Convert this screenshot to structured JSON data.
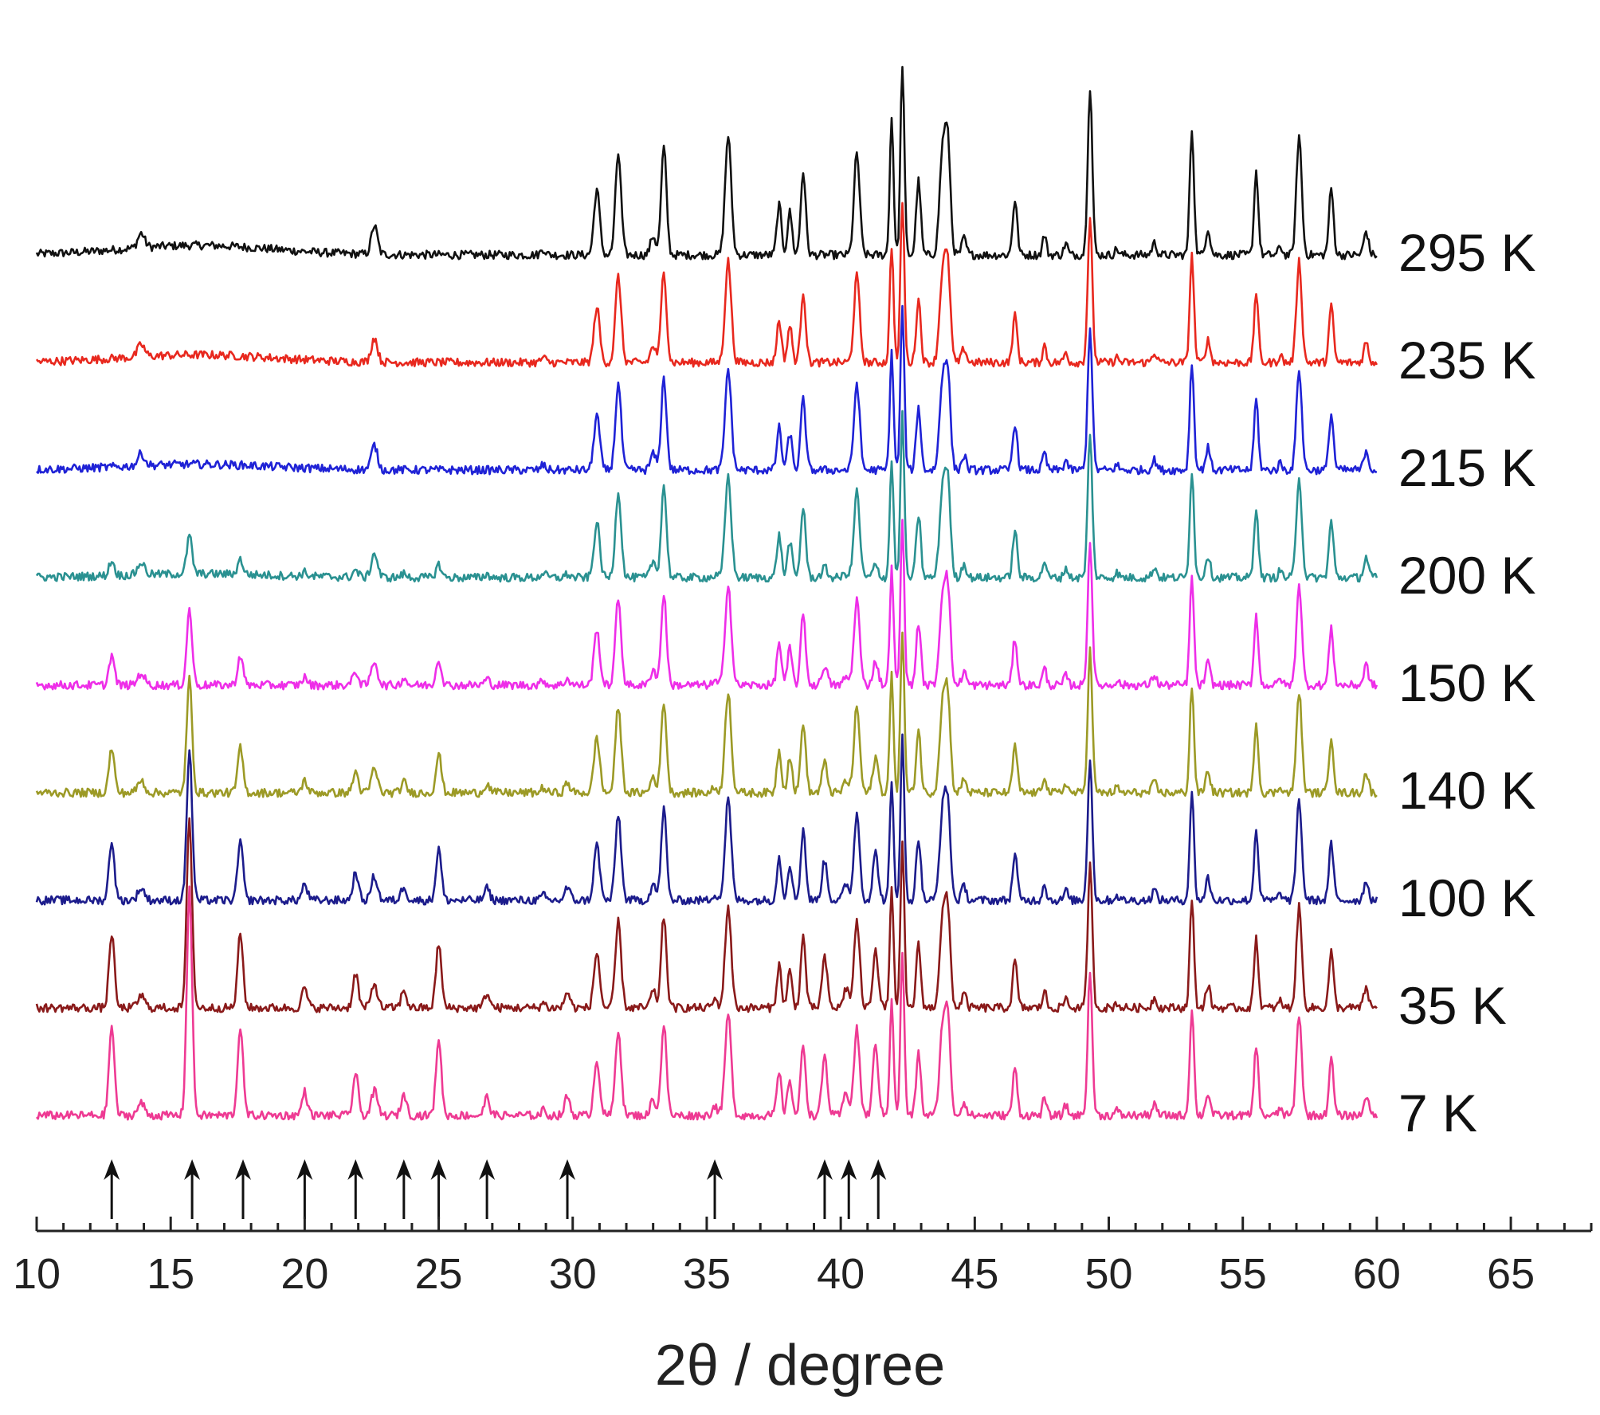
{
  "chart_data": {
    "type": "line",
    "title": "",
    "xlabel": "2θ / degree",
    "ylabel": "",
    "xlim": [
      10,
      68
    ],
    "x_ticks": [
      "10",
      "15",
      "20",
      "25",
      "30",
      "35",
      "40",
      "45",
      "50",
      "55",
      "60",
      "65"
    ],
    "grid": false,
    "legend": "none",
    "stacked_offset": true,
    "series": [
      {
        "name": "295 K",
        "color": "#111111",
        "intensity": 1.0
      },
      {
        "name": "235 K",
        "color": "#e8281e",
        "intensity": 0.85
      },
      {
        "name": "215 K",
        "color": "#1f22d6",
        "intensity": 0.85
      },
      {
        "name": "200 K",
        "color": "#2a9191",
        "intensity": 0.85
      },
      {
        "name": "150 K",
        "color": "#ee2ee8",
        "intensity": 0.85
      },
      {
        "name": "140 K",
        "color": "#9c9a26",
        "intensity": 0.85
      },
      {
        "name": "100 K",
        "color": "#1c1c8c",
        "intensity": 0.85
      },
      {
        "name": "35 K",
        "color": "#8a1a1a",
        "intensity": 0.85
      },
      {
        "name": "7 K",
        "color": "#ee3a93",
        "intensity": 0.85
      }
    ],
    "common_peaks": [
      {
        "x": 13.9,
        "h": 0.12,
        "w": 0.18
      },
      {
        "x": 22.6,
        "h": 0.24,
        "w": 0.16
      },
      {
        "x": 28.9,
        "h": 0.05,
        "w": 0.12
      },
      {
        "x": 30.9,
        "h": 0.55,
        "w": 0.15
      },
      {
        "x": 31.7,
        "h": 0.85,
        "w": 0.15
      },
      {
        "x": 33.0,
        "h": 0.16,
        "w": 0.14
      },
      {
        "x": 33.4,
        "h": 0.9,
        "w": 0.14
      },
      {
        "x": 35.8,
        "h": 1.0,
        "w": 0.16
      },
      {
        "x": 37.7,
        "h": 0.42,
        "w": 0.12
      },
      {
        "x": 38.1,
        "h": 0.36,
        "w": 0.12
      },
      {
        "x": 38.6,
        "h": 0.7,
        "w": 0.13
      },
      {
        "x": 40.6,
        "h": 0.85,
        "w": 0.15
      },
      {
        "x": 41.9,
        "h": 1.15,
        "w": 0.1
      },
      {
        "x": 42.3,
        "h": 1.6,
        "w": 0.1
      },
      {
        "x": 42.9,
        "h": 0.62,
        "w": 0.12
      },
      {
        "x": 43.8,
        "h": 0.85,
        "w": 0.16
      },
      {
        "x": 44.0,
        "h": 0.85,
        "w": 0.14
      },
      {
        "x": 44.6,
        "h": 0.14,
        "w": 0.12
      },
      {
        "x": 46.5,
        "h": 0.46,
        "w": 0.12
      },
      {
        "x": 47.6,
        "h": 0.17,
        "w": 0.1
      },
      {
        "x": 48.4,
        "h": 0.1,
        "w": 0.1
      },
      {
        "x": 49.3,
        "h": 1.4,
        "w": 0.12
      },
      {
        "x": 50.3,
        "h": 0.05,
        "w": 0.1
      },
      {
        "x": 51.7,
        "h": 0.1,
        "w": 0.12
      },
      {
        "x": 53.1,
        "h": 1.05,
        "w": 0.11
      },
      {
        "x": 53.7,
        "h": 0.22,
        "w": 0.12
      },
      {
        "x": 55.5,
        "h": 0.7,
        "w": 0.11
      },
      {
        "x": 56.4,
        "h": 0.07,
        "w": 0.1
      },
      {
        "x": 57.1,
        "h": 1.0,
        "w": 0.14
      },
      {
        "x": 58.3,
        "h": 0.55,
        "w": 0.12
      },
      {
        "x": 59.6,
        "h": 0.2,
        "w": 0.12
      }
    ],
    "low_temperature_peaks": [
      12.8,
      15.7,
      17.6,
      20.0,
      21.9,
      23.7,
      25.0,
      26.8,
      29.8,
      35.3,
      39.4,
      40.2,
      41.3
    ],
    "low_temperature_peak_heights": [
      0.75,
      1.9,
      0.75,
      0.2,
      0.35,
      0.18,
      0.65,
      0.15,
      0.16,
      0.08,
      0.5,
      0.2,
      0.6
    ],
    "arrow_positions": [
      12.8,
      15.8,
      17.7,
      20.0,
      21.9,
      23.7,
      25.0,
      26.8,
      29.8,
      35.3,
      39.4,
      40.3,
      41.4
    ]
  }
}
